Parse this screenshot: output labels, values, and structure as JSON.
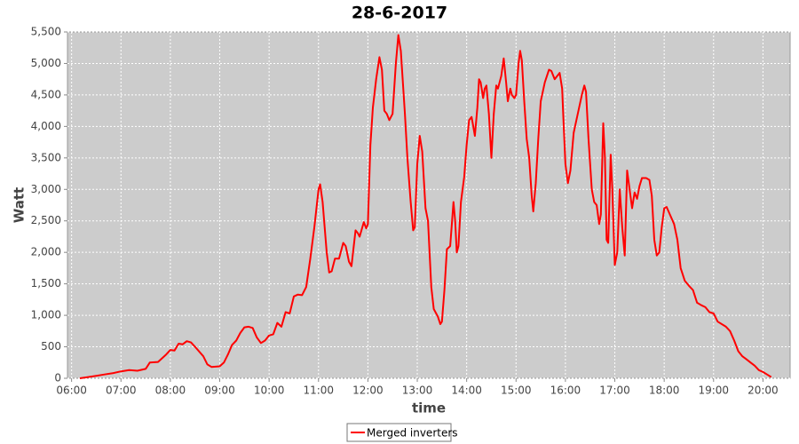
{
  "chart_data": {
    "type": "line",
    "title": "28-6-2017",
    "x_label": "time",
    "y_label": "Watt",
    "x": [
      "06:10",
      "06:20",
      "06:30",
      "06:40",
      "06:50",
      "07:00",
      "07:10",
      "07:20",
      "07:30",
      "07:35",
      "07:45",
      "07:55",
      "08:00",
      "08:05",
      "08:10",
      "08:15",
      "08:20",
      "08:25",
      "08:30",
      "08:40",
      "08:45",
      "08:50",
      "09:00",
      "09:05",
      "09:10",
      "09:15",
      "09:20",
      "09:25",
      "09:30",
      "09:35",
      "09:40",
      "09:45",
      "09:50",
      "09:55",
      "10:00",
      "10:05",
      "10:10",
      "10:15",
      "10:20",
      "10:25",
      "10:30",
      "10:35",
      "10:40",
      "10:45",
      "10:50",
      "10:55",
      "11:00",
      "11:02",
      "11:05",
      "11:10",
      "11:13",
      "11:16",
      "11:20",
      "11:25",
      "11:30",
      "11:33",
      "11:37",
      "11:40",
      "11:45",
      "11:48",
      "11:50",
      "11:55",
      "11:58",
      "12:00",
      "12:03",
      "12:06",
      "12:10",
      "12:14",
      "12:17",
      "12:20",
      "12:23",
      "12:26",
      "12:30",
      "12:34",
      "12:37",
      "12:40",
      "12:45",
      "12:48",
      "12:52",
      "12:55",
      "12:57",
      "13:00",
      "13:03",
      "13:06",
      "13:10",
      "13:13",
      "13:17",
      "13:20",
      "13:25",
      "13:28",
      "13:30",
      "13:33",
      "13:36",
      "13:40",
      "13:44",
      "13:46",
      "13:48",
      "13:50",
      "13:53",
      "13:57",
      "14:00",
      "14:03",
      "14:06",
      "14:08",
      "14:10",
      "14:13",
      "14:15",
      "14:17",
      "14:20",
      "14:22",
      "14:24",
      "14:27",
      "14:30",
      "14:33",
      "14:36",
      "14:38",
      "14:42",
      "14:45",
      "14:48",
      "14:50",
      "14:53",
      "14:55",
      "14:58",
      "15:00",
      "15:03",
      "15:05",
      "15:07",
      "15:10",
      "15:13",
      "15:16",
      "15:19",
      "15:21",
      "15:24",
      "15:27",
      "15:30",
      "15:35",
      "15:40",
      "15:43",
      "15:47",
      "15:50",
      "15:53",
      "15:56",
      "15:58",
      "16:00",
      "16:03",
      "16:06",
      "16:10",
      "16:15",
      "16:20",
      "16:23",
      "16:25",
      "16:28",
      "16:32",
      "16:35",
      "16:38",
      "16:41",
      "16:43",
      "16:46",
      "16:48",
      "16:50",
      "16:52",
      "16:55",
      "16:57",
      "17:00",
      "17:03",
      "17:06",
      "17:09",
      "17:12",
      "17:15",
      "17:18",
      "17:21",
      "17:24",
      "17:27",
      "17:30",
      "17:33",
      "17:38",
      "17:42",
      "17:45",
      "17:48",
      "17:51",
      "17:54",
      "17:57",
      "18:00",
      "18:03",
      "18:07",
      "18:12",
      "18:16",
      "18:20",
      "18:25",
      "18:30",
      "18:35",
      "18:40",
      "18:45",
      "18:50",
      "18:55",
      "19:00",
      "19:05",
      "19:15",
      "19:20",
      "19:25",
      "19:30",
      "19:35",
      "19:40",
      "19:45",
      "19:50",
      "19:55",
      "20:00",
      "20:05",
      "20:10"
    ],
    "series": [
      {
        "name": "Merged inverters",
        "color": "#ff0000",
        "values": [
          0,
          20,
          40,
          60,
          80,
          110,
          130,
          120,
          150,
          250,
          260,
          380,
          450,
          440,
          550,
          540,
          590,
          570,
          500,
          350,
          220,
          180,
          190,
          250,
          380,
          530,
          600,
          720,
          810,
          820,
          800,
          650,
          560,
          600,
          680,
          700,
          880,
          820,
          1050,
          1030,
          1300,
          1330,
          1320,
          1450,
          1900,
          2400,
          3000,
          3080,
          2800,
          2000,
          1680,
          1700,
          1900,
          1900,
          2150,
          2100,
          1850,
          1780,
          2350,
          2300,
          2250,
          2480,
          2380,
          2450,
          3700,
          4300,
          4750,
          5100,
          4900,
          4250,
          4200,
          4100,
          4200,
          5000,
          5450,
          5200,
          4200,
          3500,
          2800,
          2350,
          2400,
          3400,
          3850,
          3600,
          2700,
          2500,
          1450,
          1100,
          980,
          860,
          900,
          1400,
          2050,
          2100,
          2800,
          2500,
          2000,
          2100,
          2800,
          3200,
          3700,
          4100,
          4150,
          4000,
          3850,
          4300,
          4750,
          4700,
          4450,
          4600,
          4650,
          4200,
          3500,
          4200,
          4650,
          4600,
          4800,
          5080,
          4700,
          4400,
          4600,
          4500,
          4450,
          4500,
          5000,
          5200,
          5050,
          4400,
          3800,
          3500,
          2900,
          2650,
          3100,
          3800,
          4400,
          4700,
          4900,
          4880,
          4750,
          4800,
          4850,
          4600,
          4000,
          3400,
          3100,
          3300,
          3900,
          4200,
          4500,
          4650,
          4550,
          3800,
          3000,
          2800,
          2750,
          2450,
          2600,
          4050,
          3500,
          2200,
          2150,
          3550,
          3000,
          1800,
          2000,
          3000,
          2400,
          1950,
          3300,
          3000,
          2700,
          2950,
          2850,
          3050,
          3180,
          3180,
          3150,
          2900,
          2200,
          1950,
          2000,
          2400,
          2700,
          2720,
          2600,
          2450,
          2200,
          1750,
          1550,
          1470,
          1400,
          1200,
          1160,
          1130,
          1050,
          1030,
          900,
          820,
          750,
          600,
          430,
          350,
          300,
          250,
          200,
          130,
          100,
          60,
          20
        ]
      }
    ],
    "xlim": [
      "05:55",
      "20:33"
    ],
    "xticks": [
      "06:00",
      "07:00",
      "08:00",
      "09:00",
      "10:00",
      "11:00",
      "12:00",
      "13:00",
      "14:00",
      "15:00",
      "16:00",
      "17:00",
      "18:00",
      "19:00",
      "20:00"
    ],
    "ylim": [
      0,
      5500
    ],
    "yticks": [
      0,
      500,
      {
        "value": 1000,
        "label": "1,000"
      },
      {
        "value": 1500,
        "label": "1,500"
      },
      {
        "value": 2000,
        "label": "2,000"
      },
      {
        "value": 2500,
        "label": "2,500"
      },
      {
        "value": 3000,
        "label": "3,000"
      },
      {
        "value": 3500,
        "label": "3,500"
      },
      {
        "value": 4000,
        "label": "4,000"
      },
      {
        "value": 4500,
        "label": "4,500"
      },
      {
        "value": 5000,
        "label": "5,000"
      },
      {
        "value": 5500,
        "label": "5,500"
      }
    ],
    "grid": true,
    "legend": "bottom"
  }
}
